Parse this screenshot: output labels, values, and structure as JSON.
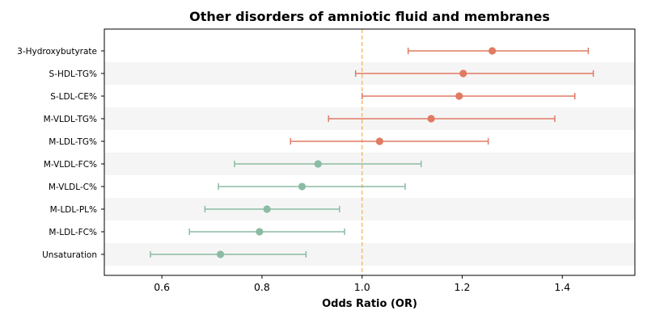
{
  "chart_data": {
    "type": "forest",
    "title": "Other disorders of amniotic fluid and membranes",
    "xlabel": "Odds Ratio (OR)",
    "xlim": [
      0.485,
      1.545
    ],
    "xticks": [
      0.6,
      0.8,
      1.0,
      1.2,
      1.4
    ],
    "xtick_labels": [
      "0.6",
      "0.8",
      "1.0",
      "1.2",
      "1.4"
    ],
    "reference_line": 1.0,
    "reference_color": "#f0c27b",
    "band_color": "#f5f5f5",
    "colors": {
      "above": "#e07b63",
      "below": "#8bbca3"
    },
    "rows": [
      {
        "label": "3-Hydroxybutyrate",
        "or": 1.26,
        "lo": 1.092,
        "hi": 1.452
      },
      {
        "label": "S-HDL-TG%",
        "or": 1.202,
        "lo": 0.987,
        "hi": 1.462
      },
      {
        "label": "S-LDL-CE%",
        "or": 1.194,
        "lo": 1.0,
        "hi": 1.425
      },
      {
        "label": "M-VLDL-TG%",
        "or": 1.138,
        "lo": 0.933,
        "hi": 1.385
      },
      {
        "label": "M-LDL-TG%",
        "or": 1.035,
        "lo": 0.857,
        "hi": 1.252
      },
      {
        "label": "M-VLDL-FC%",
        "or": 0.912,
        "lo": 0.745,
        "hi": 1.118
      },
      {
        "label": "M-VLDL-C%",
        "or": 0.88,
        "lo": 0.713,
        "hi": 1.086
      },
      {
        "label": "M-LDL-PL%",
        "or": 0.81,
        "lo": 0.686,
        "hi": 0.955
      },
      {
        "label": "M-LDL-FC%",
        "or": 0.795,
        "lo": 0.655,
        "hi": 0.965
      },
      {
        "label": "Unsaturation",
        "or": 0.717,
        "lo": 0.577,
        "hi": 0.888
      }
    ]
  }
}
